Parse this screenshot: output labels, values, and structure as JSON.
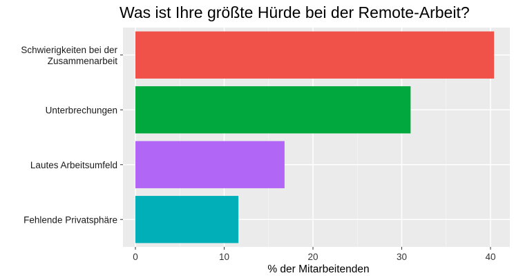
{
  "chart_data": {
    "type": "bar",
    "orientation": "horizontal",
    "title": "Was ist Ihre größte Hürde bei der Remote-Arbeit?",
    "xlabel": "% der Mitarbeitenden",
    "ylabel": "",
    "xlim": [
      0,
      42
    ],
    "xticks": [
      0,
      10,
      20,
      30,
      40
    ],
    "grid": true,
    "legend": "none",
    "categories": [
      [
        "Schwierigkeiten bei der",
        "Zusammenarbeit"
      ],
      [
        "Unterbrechungen"
      ],
      [
        "Lautes Arbeitsumfeld"
      ],
      [
        "Fehlende Privatsphäre"
      ]
    ],
    "values": [
      40.4,
      31.0,
      16.8,
      11.6
    ],
    "colors": [
      "#F0524A",
      "#00A83E",
      "#B266F5",
      "#00AFB7"
    ],
    "panel_background": "#EBEBEB"
  }
}
